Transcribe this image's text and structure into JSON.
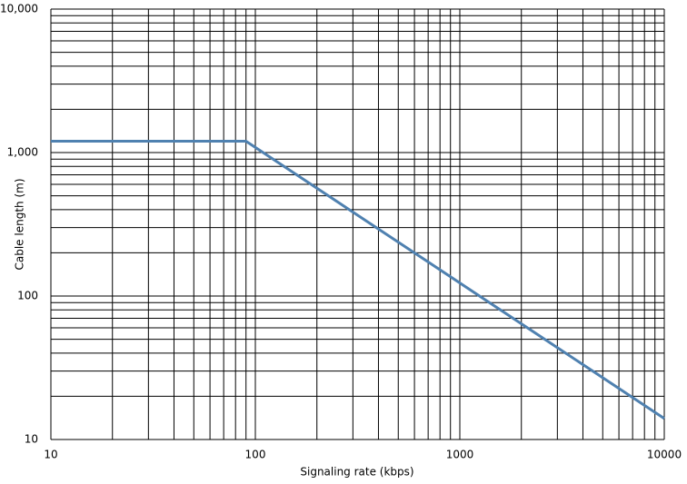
{
  "chart_data": {
    "type": "line",
    "x_label": "Signaling rate (kbps)",
    "y_label": "Cable length (m)",
    "x": [
      10,
      90,
      10000
    ],
    "series": [
      {
        "name": "Cable length",
        "color": "#4f81b0",
        "values": [
          1200,
          1200,
          14
        ]
      }
    ],
    "xlim": [
      10,
      10000
    ],
    "ylim": [
      10,
      10000
    ],
    "xticks": [
      10,
      100,
      1000,
      10000
    ],
    "yticks": [
      10,
      100,
      {
        "value": 1000,
        "label": "1,000"
      },
      {
        "value": 10000,
        "label": "10,000"
      }
    ],
    "xscale": "log",
    "yscale": "log",
    "grid": true,
    "minor_grid": true,
    "legend": false
  }
}
